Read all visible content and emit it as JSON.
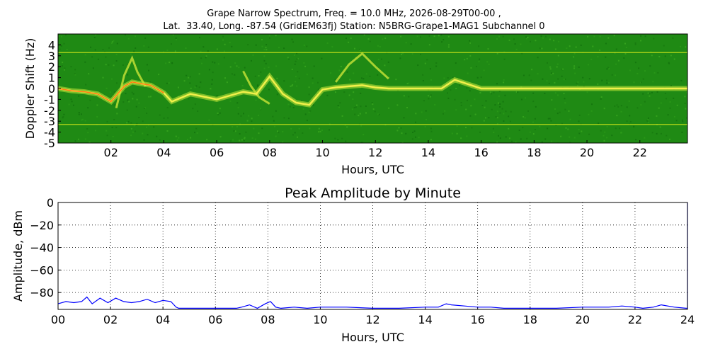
{
  "header": {
    "line1": "Grape Narrow Spectrum, Freq. = 10.0 MHz, 2026-08-29T00-00 ,",
    "line2": "Lat.  33.40, Long. -87.54 (GridEM63fj) Station: N5BRG-Grape1-MAG1 Subchannel 0"
  },
  "chart_data": [
    {
      "type": "heatmap",
      "ylabel": "Doppler Shift (Hz)",
      "xlabel": "Hours, UTC",
      "y_ticks": [
        "4",
        "3",
        "2",
        "1",
        "0",
        "-1",
        "-2",
        "-3",
        "-4",
        "-5"
      ],
      "y_tick_values": [
        4,
        3,
        2,
        1,
        0,
        -1,
        -2,
        -3,
        -4,
        -5
      ],
      "x_ticks": [
        "02",
        "04",
        "06",
        "08",
        "10",
        "12",
        "14",
        "16",
        "18",
        "20",
        "22"
      ],
      "x_tick_values": [
        2,
        4,
        6,
        8,
        10,
        12,
        14,
        16,
        18,
        20,
        22
      ],
      "xlim": [
        0,
        23.8
      ],
      "ylim": [
        -5,
        5
      ],
      "background_color": "#1f8a14",
      "reference_lines_hz": [
        3.3,
        -3.3
      ],
      "dominant_trace": {
        "x": [
          0,
          0.5,
          1,
          1.5,
          2,
          2.5,
          2.8,
          3,
          3.5,
          4,
          4.3,
          5,
          6,
          7,
          7.5,
          8,
          8.5,
          9,
          9.5,
          10,
          10.5,
          11,
          11.5,
          12,
          12.5,
          13,
          14,
          14.5,
          15,
          16,
          17,
          18,
          19,
          20,
          21,
          22,
          23,
          23.8
        ],
        "y": [
          0,
          -0.2,
          -0.3,
          -0.5,
          -1.2,
          0.2,
          0.6,
          0.5,
          0.3,
          -0.4,
          -1.2,
          -0.5,
          -1,
          -0.3,
          -0.5,
          1.1,
          -0.5,
          -1.3,
          -1.5,
          -0.1,
          0.1,
          0.2,
          0.3,
          0.1,
          0,
          0,
          0,
          0,
          0.8,
          0,
          0,
          0,
          0,
          0,
          0,
          0,
          0,
          0
        ]
      },
      "secondary_traces": [
        {
          "x": [
            2.2,
            2.5,
            2.8,
            3.0,
            3.3
          ],
          "y": [
            -1.8,
            1.2,
            2.8,
            1.5,
            0.2
          ]
        },
        {
          "x": [
            10.5,
            11,
            11.5,
            12,
            12.5
          ],
          "y": [
            0.6,
            2.2,
            3.2,
            2.0,
            0.9
          ]
        },
        {
          "x": [
            7.0,
            7.3,
            7.6,
            8.0
          ],
          "y": [
            1.6,
            0.2,
            -0.8,
            -1.4
          ]
        }
      ]
    },
    {
      "type": "line",
      "title": "Peak Amplitude by Minute",
      "ylabel": "Amplitude, dBm",
      "xlabel": "Hours, UTC",
      "ylim": [
        -95,
        0
      ],
      "xlim": [
        0,
        24
      ],
      "grid": true,
      "y_ticks": [
        "0",
        "−20",
        "−40",
        "−60",
        "−80"
      ],
      "y_tick_values": [
        0,
        -20,
        -40,
        -60,
        -80
      ],
      "x_ticks": [
        "00",
        "02",
        "04",
        "06",
        "08",
        "10",
        "12",
        "14",
        "16",
        "18",
        "20",
        "22",
        "24"
      ],
      "x_tick_values": [
        0,
        2,
        4,
        6,
        8,
        10,
        12,
        14,
        16,
        18,
        20,
        22,
        24
      ],
      "series": [
        {
          "color": "#0000ff",
          "x": [
            0,
            0.3,
            0.6,
            0.9,
            1.1,
            1.3,
            1.6,
            1.9,
            2.2,
            2.5,
            2.8,
            3.1,
            3.4,
            3.7,
            4.0,
            4.3,
            4.5,
            4.6,
            5,
            6,
            6.8,
            7.0,
            7.3,
            7.6,
            7.9,
            8.1,
            8.3,
            8.5,
            9,
            9.5,
            10,
            11,
            12,
            13,
            14,
            14.5,
            14.8,
            15,
            15.5,
            16,
            16.5,
            17,
            18,
            19,
            20,
            21,
            21.5,
            22,
            22.3,
            22.7,
            23,
            23.5,
            23.95,
            24,
            24
          ],
          "y": [
            -90,
            -88,
            -89,
            -88,
            -84,
            -90,
            -85,
            -89,
            -85,
            -88,
            -89,
            -88,
            -86,
            -89,
            -87,
            -88,
            -93,
            -94,
            -94,
            -94,
            -94,
            -93,
            -91,
            -94,
            -90,
            -88,
            -93,
            -94,
            -93,
            -94,
            -93,
            -93,
            -94,
            -94,
            -93,
            -93,
            -90,
            -91,
            -92,
            -93,
            -93,
            -94,
            -94,
            -94,
            -93,
            -93,
            -92,
            -93,
            -94,
            -93,
            -91,
            -93,
            -94,
            -94,
            0
          ]
        }
      ]
    }
  ]
}
